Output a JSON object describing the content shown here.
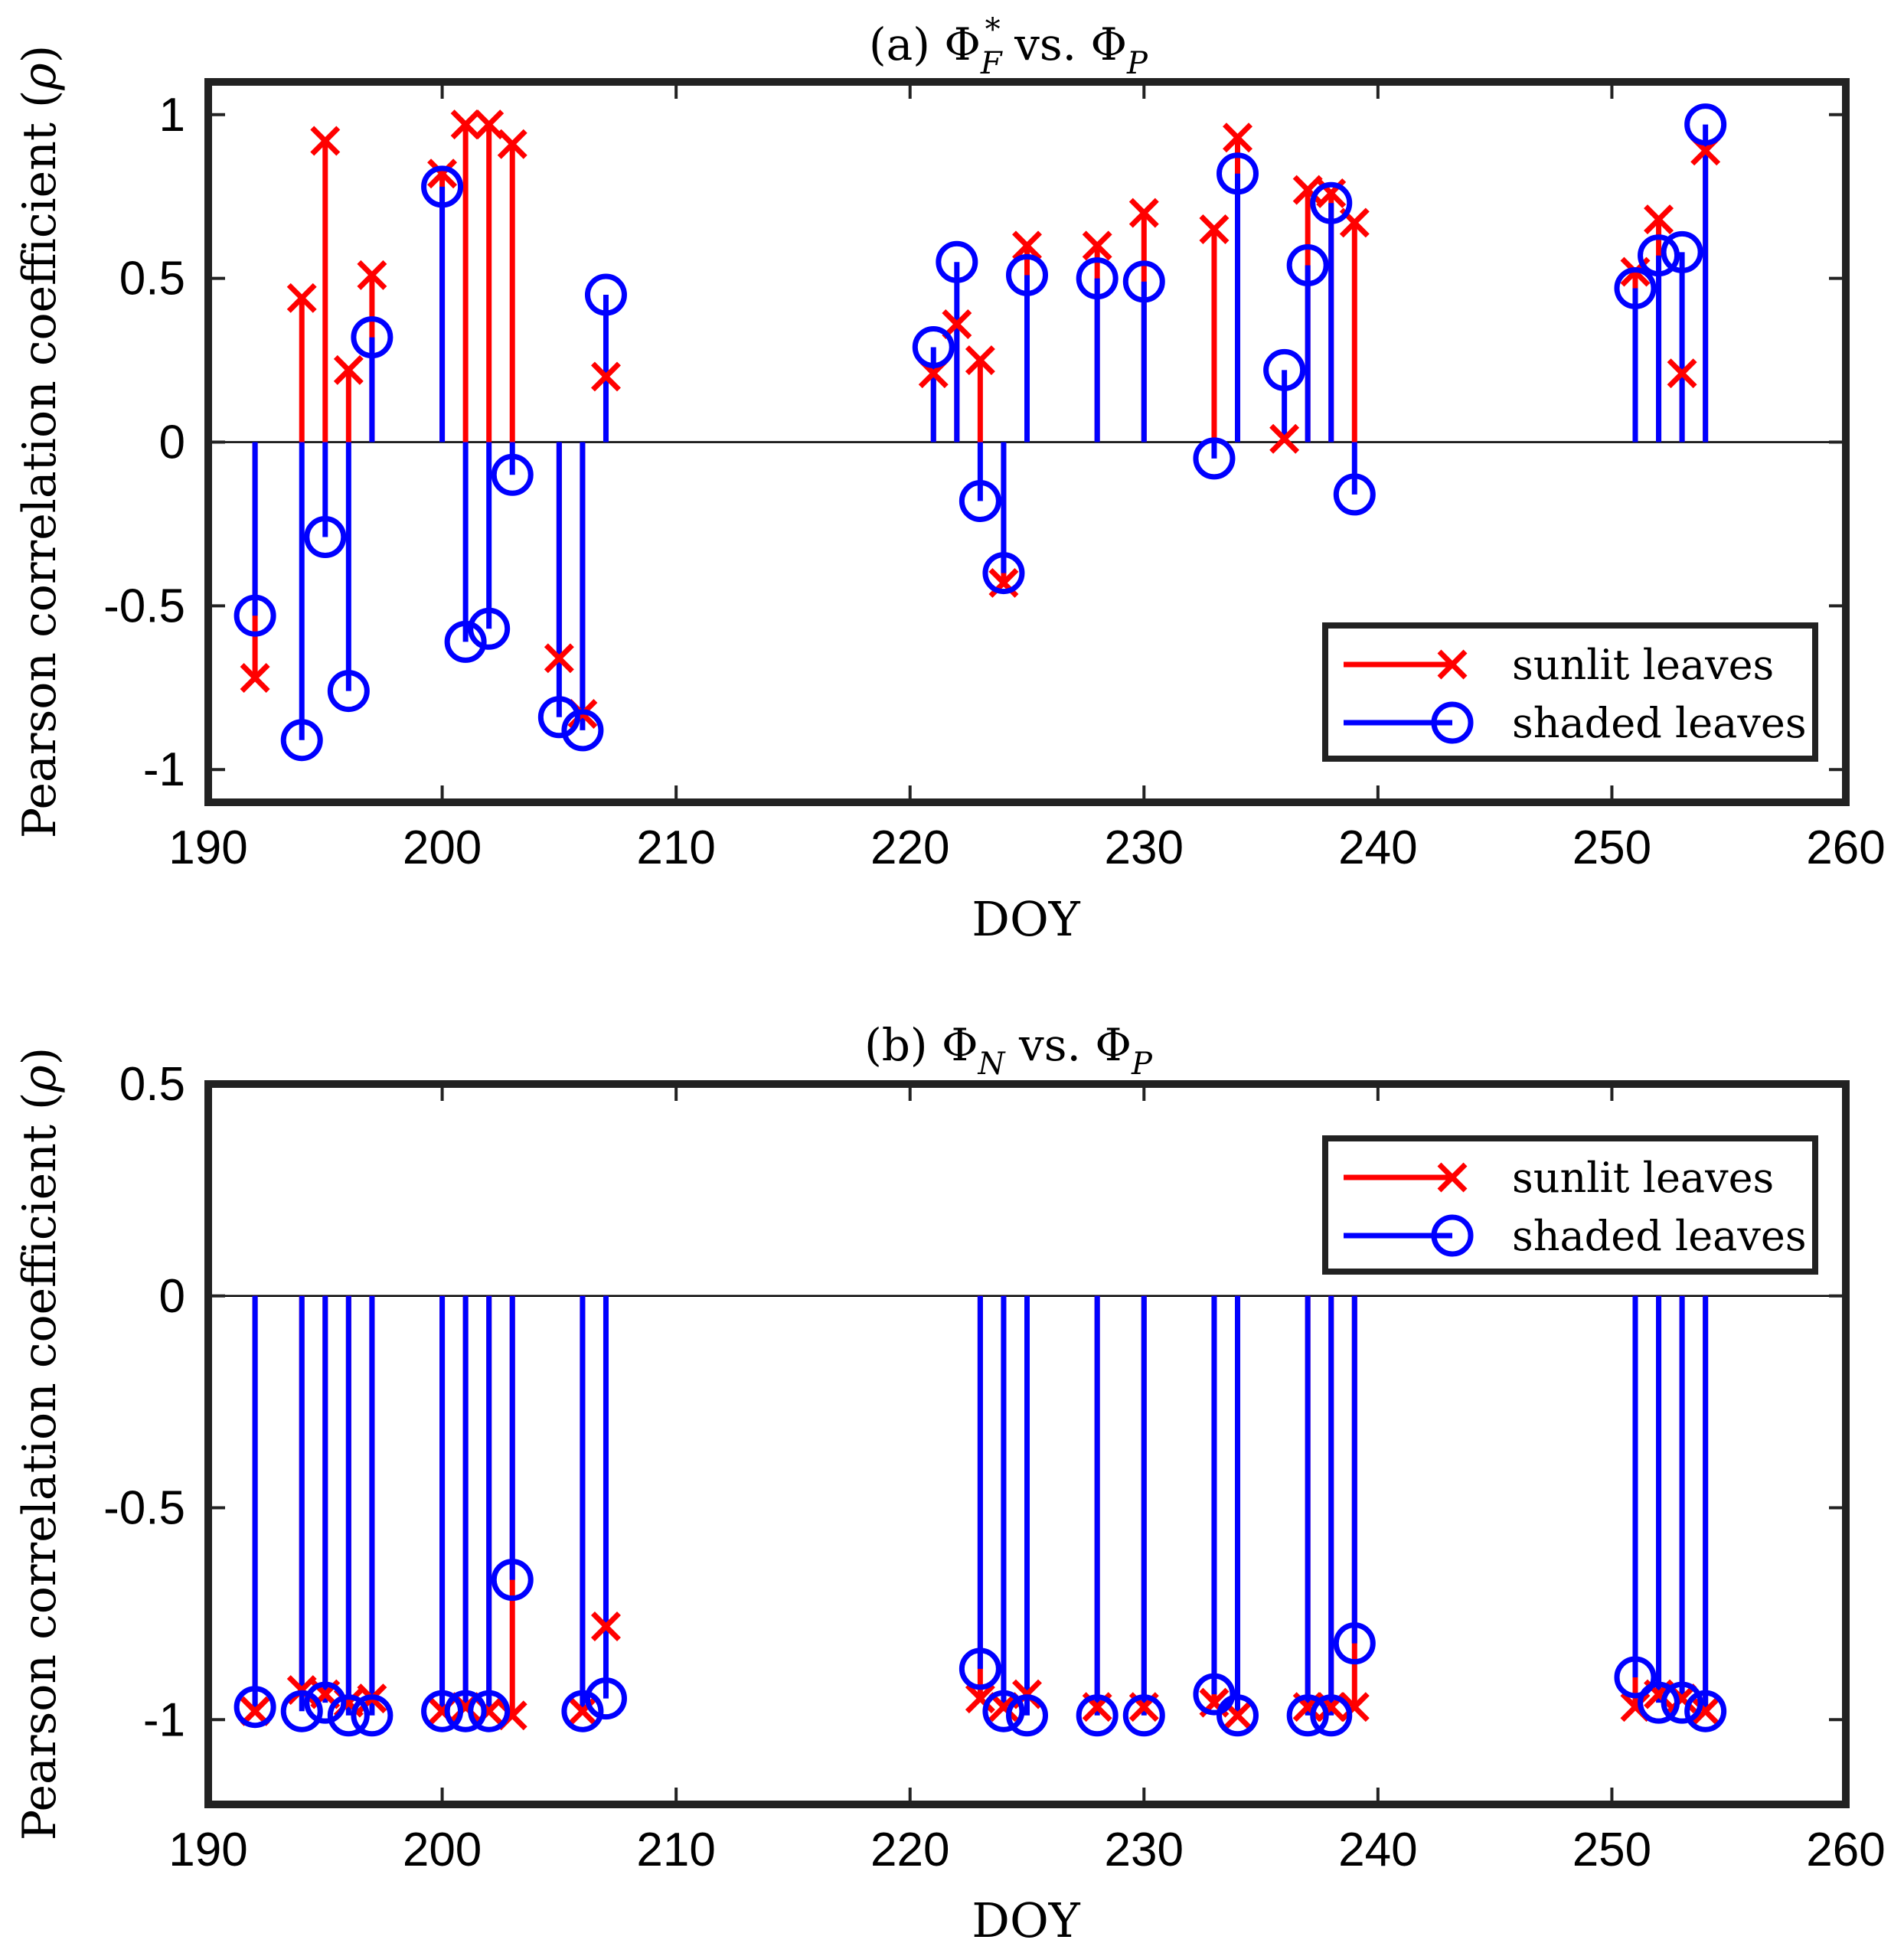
{
  "chart_data": [
    {
      "type": "stem",
      "panel": "a",
      "title": "(a) Φ*F vs. ΦP",
      "title_parts": {
        "prefix": "(a) ",
        "sym1": "Φ",
        "sub1": "F",
        "sup1": "*",
        "mid": " vs. ",
        "sym2": "Φ",
        "sub2": "P"
      },
      "xlabel": "DOY",
      "ylabel": "Pearson correlation coefficient (ρ)",
      "ylabel_parts": {
        "text": "Pearson correlation coefficient (",
        "sym": "ρ",
        "close": ")"
      },
      "xlim": [
        190,
        260
      ],
      "ylim": [
        -1.1,
        1.1
      ],
      "xticks": [
        "190",
        "200",
        "210",
        "220",
        "230",
        "240",
        "250",
        "260"
      ],
      "yticks": [
        "-1",
        "-0.5",
        "0",
        "0.5",
        "1"
      ],
      "legend_position": "bottom-right",
      "series": [
        {
          "name": "sunlit leaves",
          "marker": "x",
          "color": "#ff0000",
          "x": [
            192,
            194,
            195,
            196,
            197,
            200,
            201,
            202,
            203,
            205,
            206,
            207,
            221,
            222,
            223,
            224,
            225,
            228,
            230,
            233,
            234,
            236,
            237,
            238,
            239,
            251,
            252,
            253,
            254
          ],
          "y": [
            -0.72,
            0.44,
            0.92,
            0.22,
            0.51,
            0.82,
            0.97,
            0.97,
            0.91,
            -0.66,
            -0.83,
            0.2,
            0.21,
            0.36,
            0.25,
            -0.43,
            0.6,
            0.6,
            0.7,
            0.65,
            0.93,
            0.01,
            0.77,
            0.76,
            0.67,
            0.52,
            0.68,
            0.21,
            0.89
          ]
        },
        {
          "name": "shaded leaves",
          "marker": "o",
          "color": "#0000ff",
          "x": [
            192,
            194,
            195,
            196,
            197,
            200,
            201,
            202,
            203,
            205,
            206,
            207,
            221,
            222,
            223,
            224,
            225,
            228,
            230,
            233,
            234,
            236,
            237,
            238,
            239,
            251,
            252,
            253,
            254
          ],
          "y": [
            -0.53,
            -0.91,
            -0.29,
            -0.76,
            0.32,
            0.78,
            -0.61,
            -0.57,
            -0.1,
            -0.84,
            -0.88,
            0.45,
            0.29,
            0.55,
            -0.18,
            -0.4,
            0.51,
            0.5,
            0.49,
            -0.05,
            0.82,
            0.22,
            0.54,
            0.73,
            -0.16,
            0.47,
            0.57,
            0.58,
            0.97
          ]
        }
      ]
    },
    {
      "type": "stem",
      "panel": "b",
      "title": "(b) ΦN vs. ΦP",
      "title_parts": {
        "prefix": "(b) ",
        "sym1": "Φ",
        "sub1": "N",
        "sup1": "",
        "mid": " vs. ",
        "sym2": "Φ",
        "sub2": "P"
      },
      "xlabel": "DOY",
      "ylabel": "Pearson correlation coefficient (ρ)",
      "ylabel_parts": {
        "text": "Pearson correlation coefficient (",
        "sym": "ρ",
        "close": ")"
      },
      "xlim": [
        190,
        260
      ],
      "ylim": [
        -1.2,
        0.5
      ],
      "xticks": [
        "190",
        "200",
        "210",
        "220",
        "230",
        "240",
        "250",
        "260"
      ],
      "yticks": [
        "-1",
        "-0.5",
        "0",
        "0.5"
      ],
      "legend_position": "top-right",
      "series": [
        {
          "name": "sunlit leaves",
          "marker": "x",
          "color": "#ff0000",
          "x": [
            192,
            194,
            195,
            196,
            197,
            200,
            201,
            202,
            203,
            206,
            207,
            223,
            224,
            225,
            228,
            230,
            233,
            234,
            237,
            238,
            239,
            251,
            252,
            253,
            254
          ],
          "y": [
            -0.98,
            -0.93,
            -0.94,
            -0.96,
            -0.95,
            -0.98,
            -0.97,
            -0.98,
            -0.99,
            -0.98,
            -0.78,
            -0.95,
            -0.97,
            -0.94,
            -0.97,
            -0.97,
            -0.96,
            -0.99,
            -0.97,
            -0.97,
            -0.97,
            -0.97,
            -0.94,
            -0.95,
            -0.98
          ]
        },
        {
          "name": "shaded leaves",
          "marker": "o",
          "color": "#0000ff",
          "x": [
            192,
            194,
            195,
            196,
            197,
            200,
            201,
            202,
            203,
            206,
            207,
            223,
            224,
            225,
            228,
            230,
            233,
            234,
            237,
            238,
            239,
            251,
            252,
            253,
            254
          ],
          "y": [
            -0.97,
            -0.98,
            -0.96,
            -0.99,
            -0.99,
            -0.98,
            -0.98,
            -0.98,
            -0.67,
            -0.98,
            -0.95,
            -0.88,
            -0.98,
            -0.99,
            -0.99,
            -0.99,
            -0.94,
            -0.99,
            -0.99,
            -0.99,
            -0.82,
            -0.9,
            -0.96,
            -0.96,
            -0.98
          ]
        }
      ]
    }
  ]
}
